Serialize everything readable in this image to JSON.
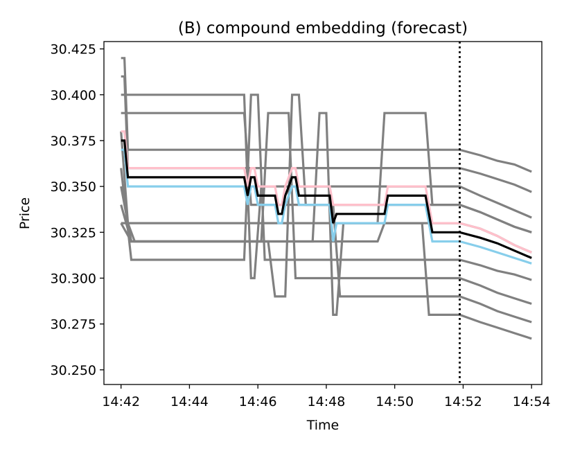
{
  "chart_data": {
    "type": "line",
    "title": "(B) compound embedding (forecast)",
    "xlabel": "Time",
    "ylabel": "Price",
    "xlim": [
      "14:41.5",
      "14:54.3"
    ],
    "ylim": [
      30.242,
      30.429
    ],
    "x_ticks": [
      "14:42",
      "14:44",
      "14:46",
      "14:48",
      "14:50",
      "14:52",
      "14:54"
    ],
    "y_ticks": [
      "30.250",
      "30.275",
      "30.300",
      "30.325",
      "30.350",
      "30.375",
      "30.400",
      "30.425"
    ],
    "forecast_start": "14:51.9",
    "grid": false,
    "legend": "none",
    "colors": {
      "samples": "#808080",
      "median": "#000000",
      "upper": "#ffc0cb",
      "lower": "#87ceeb",
      "forecast_marker": "#000000"
    },
    "series": [
      {
        "role": "median",
        "points": [
          [
            "14:42.0",
            30.375
          ],
          [
            "14:42.1",
            30.375
          ],
          [
            "14:42.2",
            30.355
          ],
          [
            "14:45.6",
            30.355
          ],
          [
            "14:45.7",
            30.345
          ],
          [
            "14:45.8",
            30.355
          ],
          [
            "14:45.9",
            30.355
          ],
          [
            "14:46.0",
            30.345
          ],
          [
            "14:46.5",
            30.345
          ],
          [
            "14:46.6",
            30.335
          ],
          [
            "14:46.7",
            30.335
          ],
          [
            "14:46.8",
            30.345
          ],
          [
            "14:47.0",
            30.355
          ],
          [
            "14:47.1",
            30.355
          ],
          [
            "14:47.2",
            30.345
          ],
          [
            "14:48.1",
            30.345
          ],
          [
            "14:48.2",
            30.33
          ],
          [
            "14:48.3",
            30.335
          ],
          [
            "14:49.7",
            30.335
          ],
          [
            "14:49.8",
            30.345
          ],
          [
            "14:50.9",
            30.345
          ],
          [
            "14:51.1",
            30.325
          ],
          [
            "14:51.9",
            30.325
          ],
          [
            "14:52.5",
            30.322
          ],
          [
            "14:53.0",
            30.319
          ],
          [
            "14:53.5",
            30.315
          ],
          [
            "14:54.0",
            30.311
          ]
        ]
      },
      {
        "role": "upper",
        "points": [
          [
            "14:42.0",
            30.38
          ],
          [
            "14:42.1",
            30.38
          ],
          [
            "14:42.2",
            30.36
          ],
          [
            "14:45.6",
            30.36
          ],
          [
            "14:45.7",
            30.35
          ],
          [
            "14:45.8",
            30.36
          ],
          [
            "14:45.9",
            30.36
          ],
          [
            "14:46.0",
            30.35
          ],
          [
            "14:46.5",
            30.35
          ],
          [
            "14:46.6",
            30.34
          ],
          [
            "14:46.7",
            30.34
          ],
          [
            "14:46.8",
            30.35
          ],
          [
            "14:47.0",
            30.36
          ],
          [
            "14:47.1",
            30.36
          ],
          [
            "14:47.2",
            30.35
          ],
          [
            "14:48.1",
            30.35
          ],
          [
            "14:48.2",
            30.34
          ],
          [
            "14:49.7",
            30.34
          ],
          [
            "14:49.8",
            30.35
          ],
          [
            "14:50.9",
            30.35
          ],
          [
            "14:51.1",
            30.33
          ],
          [
            "14:51.9",
            30.33
          ],
          [
            "14:52.5",
            30.327
          ],
          [
            "14:53.0",
            30.323
          ],
          [
            "14:53.5",
            30.318
          ],
          [
            "14:54.0",
            30.314
          ]
        ]
      },
      {
        "role": "lower",
        "points": [
          [
            "14:42.0",
            30.37
          ],
          [
            "14:42.1",
            30.37
          ],
          [
            "14:42.2",
            30.35
          ],
          [
            "14:45.6",
            30.35
          ],
          [
            "14:45.7",
            30.34
          ],
          [
            "14:45.8",
            30.35
          ],
          [
            "14:45.9",
            30.35
          ],
          [
            "14:46.0",
            30.34
          ],
          [
            "14:46.5",
            30.34
          ],
          [
            "14:46.6",
            30.33
          ],
          [
            "14:46.7",
            30.33
          ],
          [
            "14:46.8",
            30.34
          ],
          [
            "14:47.0",
            30.35
          ],
          [
            "14:47.1",
            30.35
          ],
          [
            "14:47.2",
            30.34
          ],
          [
            "14:48.1",
            30.34
          ],
          [
            "14:48.2",
            30.32
          ],
          [
            "14:48.3",
            30.33
          ],
          [
            "14:49.7",
            30.33
          ],
          [
            "14:49.8",
            30.34
          ],
          [
            "14:50.9",
            30.34
          ],
          [
            "14:51.1",
            30.32
          ],
          [
            "14:51.9",
            30.32
          ],
          [
            "14:52.5",
            30.317
          ],
          [
            "14:53.0",
            30.314
          ],
          [
            "14:53.5",
            30.311
          ],
          [
            "14:54.0",
            30.308
          ]
        ]
      },
      {
        "role": "sample",
        "points": [
          [
            "14:42.0",
            30.42
          ],
          [
            "14:42.1",
            30.42
          ],
          [
            "14:42.2",
            30.37
          ],
          [
            "14:51.9",
            30.37
          ],
          [
            "14:52.5",
            30.367
          ],
          [
            "14:53.0",
            30.364
          ],
          [
            "14:53.5",
            30.362
          ],
          [
            "14:54.0",
            30.358
          ]
        ]
      },
      {
        "role": "sample",
        "points": [
          [
            "14:42.0",
            30.41
          ],
          [
            "14:42.1",
            30.41
          ],
          [
            "14:42.2",
            30.36
          ],
          [
            "14:51.9",
            30.36
          ],
          [
            "14:52.5",
            30.357
          ],
          [
            "14:53.0",
            30.354
          ],
          [
            "14:53.5",
            30.351
          ],
          [
            "14:54.0",
            30.347
          ]
        ]
      },
      {
        "role": "sample",
        "points": [
          [
            "14:42.0",
            30.4
          ],
          [
            "14:45.6",
            30.4
          ],
          [
            "14:45.8",
            30.3
          ],
          [
            "14:45.9",
            30.3
          ],
          [
            "14:46.1",
            30.35
          ],
          [
            "14:51.9",
            30.35
          ],
          [
            "14:52.5",
            30.345
          ],
          [
            "14:53.0",
            30.341
          ],
          [
            "14:53.5",
            30.337
          ],
          [
            "14:54.0",
            30.333
          ]
        ]
      },
      {
        "role": "sample",
        "points": [
          [
            "14:42.0",
            30.39
          ],
          [
            "14:45.6",
            30.39
          ],
          [
            "14:45.8",
            30.34
          ],
          [
            "14:51.9",
            30.34
          ],
          [
            "14:52.5",
            30.336
          ],
          [
            "14:53.0",
            30.332
          ],
          [
            "14:53.5",
            30.328
          ],
          [
            "14:54.0",
            30.325
          ]
        ]
      },
      {
        "role": "sample",
        "points": [
          [
            "14:42.0",
            30.38
          ],
          [
            "14:42.2",
            30.33
          ],
          [
            "14:51.9",
            30.33
          ],
          [
            "14:52.5",
            30.327
          ],
          [
            "14:53.0",
            30.323
          ],
          [
            "14:53.5",
            30.318
          ],
          [
            "14:54.0",
            30.314
          ]
        ]
      },
      {
        "role": "sample",
        "points": [
          [
            "14:42.0",
            30.36
          ],
          [
            "14:42.3",
            30.31
          ],
          [
            "14:45.6",
            30.31
          ],
          [
            "14:45.8",
            30.4
          ],
          [
            "14:46.0",
            30.4
          ],
          [
            "14:46.2",
            30.31
          ],
          [
            "14:51.9",
            30.31
          ],
          [
            "14:52.5",
            30.307
          ],
          [
            "14:53.0",
            30.304
          ],
          [
            "14:53.5",
            30.302
          ],
          [
            "14:54.0",
            30.299
          ]
        ]
      },
      {
        "role": "sample",
        "points": [
          [
            "14:42.0",
            30.35
          ],
          [
            "14:42.3",
            30.32
          ],
          [
            "14:46.1",
            30.32
          ],
          [
            "14:46.3",
            30.39
          ],
          [
            "14:46.9",
            30.39
          ],
          [
            "14:47.1",
            30.3
          ],
          [
            "14:51.9",
            30.3
          ],
          [
            "14:52.5",
            30.296
          ],
          [
            "14:53.0",
            30.292
          ],
          [
            "14:53.5",
            30.289
          ],
          [
            "14:54.0",
            30.286
          ]
        ]
      },
      {
        "role": "sample",
        "points": [
          [
            "14:42.0",
            30.34
          ],
          [
            "14:42.3",
            30.32
          ],
          [
            "14:46.3",
            30.32
          ],
          [
            "14:46.5",
            30.29
          ],
          [
            "14:46.8",
            30.29
          ],
          [
            "14:47.0",
            30.4
          ],
          [
            "14:47.2",
            30.4
          ],
          [
            "14:47.4",
            30.34
          ],
          [
            "14:48.2",
            30.34
          ],
          [
            "14:48.4",
            30.29
          ],
          [
            "14:51.9",
            30.29
          ],
          [
            "14:52.5",
            30.286
          ],
          [
            "14:53.0",
            30.282
          ],
          [
            "14:53.5",
            30.279
          ],
          [
            "14:54.0",
            30.276
          ]
        ]
      },
      {
        "role": "sample",
        "points": [
          [
            "14:42.0",
            30.33
          ],
          [
            "14:42.3",
            30.32
          ],
          [
            "14:47.6",
            30.32
          ],
          [
            "14:47.8",
            30.39
          ],
          [
            "14:48.0",
            30.39
          ],
          [
            "14:48.2",
            30.28
          ],
          [
            "14:48.3",
            30.28
          ],
          [
            "14:48.5",
            30.33
          ],
          [
            "14:49.5",
            30.33
          ],
          [
            "14:49.7",
            30.39
          ],
          [
            "14:50.9",
            30.39
          ],
          [
            "14:51.1",
            30.34
          ],
          [
            "14:51.9",
            30.34
          ],
          [
            "14:52.5",
            30.336
          ],
          [
            "14:53.0",
            30.332
          ],
          [
            "14:53.5",
            30.328
          ],
          [
            "14:54.0",
            30.325
          ]
        ]
      },
      {
        "role": "sample",
        "points": [
          [
            "14:42.0",
            30.33
          ],
          [
            "14:42.2",
            30.33
          ],
          [
            "14:42.4",
            30.32
          ],
          [
            "14:49.5",
            30.32
          ],
          [
            "14:49.7",
            30.33
          ],
          [
            "14:50.8",
            30.33
          ],
          [
            "14:51.0",
            30.28
          ],
          [
            "14:51.9",
            30.28
          ],
          [
            "14:52.5",
            30.276
          ],
          [
            "14:53.0",
            30.273
          ],
          [
            "14:53.5",
            30.27
          ],
          [
            "14:54.0",
            30.267
          ]
        ]
      }
    ]
  }
}
